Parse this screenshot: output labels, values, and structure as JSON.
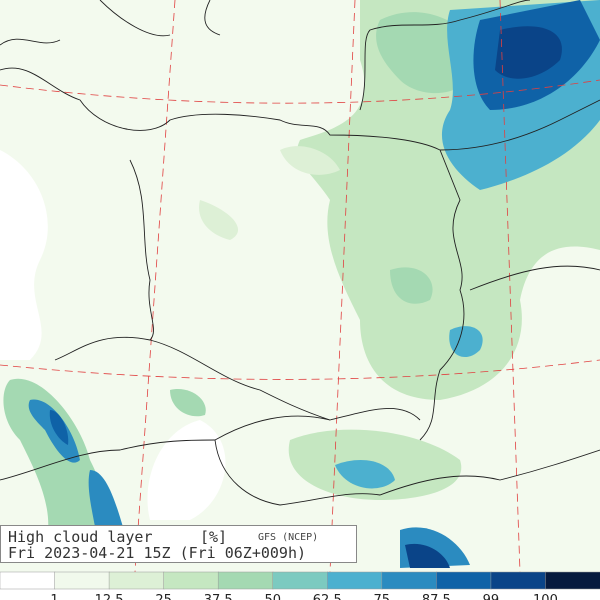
{
  "title": {
    "variable": "High cloud layer",
    "unit": "[%]",
    "model": "GFS (NCEP)",
    "time": "Fri 2023-04-21 15Z (Fri 06Z+009h)"
  },
  "legend": {
    "ticks": [
      1,
      12.5,
      25,
      37.5,
      50,
      62.5,
      75,
      87.5,
      99,
      100
    ],
    "colors": [
      "#ffffff",
      "#f1f9ec",
      "#ddf0d6",
      "#c5e7c1",
      "#a4d9b2",
      "#7ccac0",
      "#4cb0cf",
      "#2b8bc0",
      "#0f62a7",
      "#0a4488",
      "#061a3e"
    ]
  }
}
